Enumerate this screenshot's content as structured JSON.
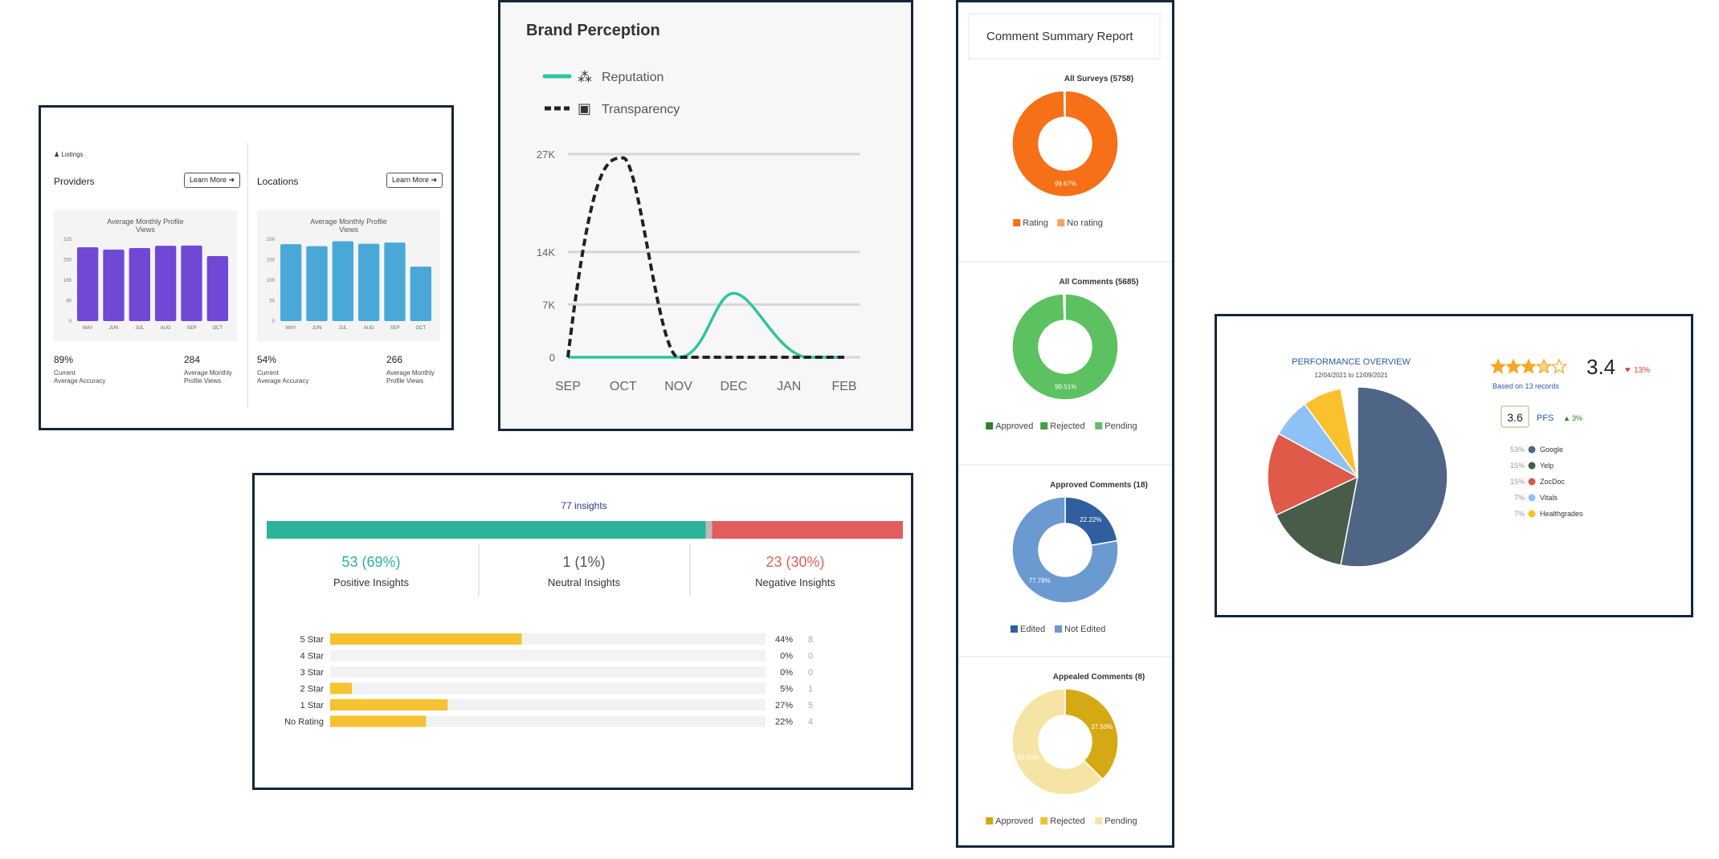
{
  "listings": {
    "header": "Listings",
    "panels": [
      {
        "title": "Providers",
        "button": "Learn More",
        "chart_title": "Average Monthly Profile Views",
        "stat1": {
          "value": "89%",
          "label1": "Current",
          "label2": "Average Accuracy"
        },
        "stat2": {
          "value": "284",
          "label1": "Average Monthly",
          "label2": "Profile Views"
        },
        "color": "#7048d6"
      },
      {
        "title": "Locations",
        "button": "Learn More",
        "chart_title": "Average Monthly Profile Views",
        "stat1": {
          "value": "54%",
          "label1": "Current",
          "label2": "Average Accuracy"
        },
        "stat2": {
          "value": "266",
          "label1": "Average Monthly",
          "label2": "Profile Views"
        },
        "color": "#4aa8d8"
      }
    ]
  },
  "brand": {
    "title": "Brand Perception",
    "legend": [
      "Reputation",
      "Transparency"
    ],
    "colors": [
      "#2ec4a0",
      "#222222"
    ]
  },
  "comments": {
    "title": "Comment Summary Report",
    "donuts": [
      {
        "title": "All Surveys (5758)",
        "slices": [
          99.67,
          0.33
        ],
        "colors": [
          "#f57016",
          "#f7a268"
        ],
        "labels": [
          "99.67%",
          ""
        ],
        "legend": [
          "Rating",
          "No rating"
        ],
        "legend_colors": [
          "#f57016",
          "#f7a268"
        ]
      },
      {
        "title": "All Comments (5685)",
        "slices": [
          99.51,
          0.1,
          0.39
        ],
        "colors": [
          "#5cc160",
          "#3a9a3e",
          "#9ed99f"
        ],
        "labels": [
          "99.51%",
          "",
          ""
        ],
        "legend": [
          "Approved",
          "Rejected",
          "Pending"
        ],
        "legend_colors": [
          "#2d7d32",
          "#43a047",
          "#66bb6a"
        ]
      },
      {
        "title": "Approved Comments (18)",
        "slices": [
          22.22,
          77.78
        ],
        "colors": [
          "#2f5f9e",
          "#6a9ad0"
        ],
        "labels": [
          "22.22%",
          "77.78%"
        ],
        "legend": [
          "Edited",
          "Not Edited"
        ],
        "legend_colors": [
          "#2f5f9e",
          "#6a9ad0"
        ]
      },
      {
        "title": "Appealed Comments (8)",
        "slices": [
          37.5,
          62.5
        ],
        "colors": [
          "#d4a914",
          "#f5e4a3"
        ],
        "labels": [
          "37.50%",
          "62.50%"
        ],
        "legend": [
          "Approved",
          "Rejected",
          "Pending"
        ],
        "legend_colors": [
          "#d4a914",
          "#f0c030",
          "#f5e4a3"
        ]
      }
    ]
  },
  "insights": {
    "total": "77 insights",
    "positive": {
      "value": "53 (69%)",
      "label": "Positive Insights"
    },
    "neutral": {
      "value": "1 (1%)",
      "label": "Neutral Insights"
    },
    "negative": {
      "value": "23 (30%)",
      "label": "Negative Insights"
    },
    "split": [
      69,
      1,
      30
    ],
    "colors": [
      "#2bb39c",
      "#bbbbbb",
      "#e25e5e"
    ],
    "star_color": "#f6c231"
  },
  "performance": {
    "title": "PERFORMANCE OVERVIEW",
    "dates": "12/04/2021 to 12/09/2021",
    "rating": "3.4",
    "rating_stars": 3.4,
    "rating_change": "13%",
    "based_on": "Based on 13 records",
    "pfs_value": "3.6",
    "pfs_label": "PFS",
    "pfs_change": "3%",
    "legend": [
      {
        "pct": "53%",
        "name": "Google",
        "color": "#4e6586"
      },
      {
        "pct": "15%",
        "name": "Yelp",
        "color": "#485c49"
      },
      {
        "pct": "15%",
        "name": "ZocDoc",
        "color": "#e05a4a"
      },
      {
        "pct": "7%",
        "name": "Vitals",
        "color": "#8ec1f5"
      },
      {
        "pct": "7%",
        "name": "Healthgrades",
        "color": "#fbc02d"
      }
    ]
  },
  "chart_data": [
    {
      "type": "bar",
      "title": "Average Monthly Profile Views",
      "categories": [
        "MAY",
        "JUN",
        "JUL",
        "AUG",
        "SEP",
        "OCT"
      ],
      "values": [
        293,
        284,
        290,
        299,
        300,
        258
      ],
      "yticks": [
        "325",
        "250",
        "165",
        "80",
        "0"
      ],
      "ylim": [
        0,
        325
      ]
    },
    {
      "type": "bar",
      "title": "Average Monthly Profile Views",
      "categories": [
        "MAY",
        "JUN",
        "JUL",
        "AUG",
        "SEP",
        "OCT"
      ],
      "values": [
        188,
        183,
        195,
        189,
        192,
        133
      ],
      "yticks": [
        "200",
        "150",
        "100",
        "50",
        "0"
      ],
      "ylim": [
        0,
        200
      ]
    },
    {
      "type": "line",
      "title": "Brand Perception",
      "x": [
        "SEP",
        "OCT",
        "NOV",
        "DEC",
        "JAN",
        "FEB"
      ],
      "series": [
        {
          "name": "Reputation",
          "values": [
            0,
            0,
            0,
            8500,
            0,
            0
          ]
        },
        {
          "name": "Transparency",
          "values": [
            0,
            26500,
            0,
            0,
            0,
            0
          ]
        }
      ],
      "yticks": [
        "27K",
        "14K",
        "7K",
        "0"
      ],
      "ylim": [
        0,
        27000
      ]
    },
    {
      "type": "pie",
      "title": "All Surveys (5758)",
      "categories": [
        "Rating",
        "No rating"
      ],
      "values": [
        99.67,
        0.33
      ]
    },
    {
      "type": "pie",
      "title": "All Comments (5685)",
      "categories": [
        "Approved",
        "Rejected",
        "Pending"
      ],
      "values": [
        99.51,
        0.1,
        0.39
      ]
    },
    {
      "type": "pie",
      "title": "Approved Comments (18)",
      "categories": [
        "Edited",
        "Not Edited"
      ],
      "values": [
        22.22,
        77.78
      ]
    },
    {
      "type": "pie",
      "title": "Appealed Comments (8)",
      "categories": [
        "Approved",
        "Rejected",
        "Pending"
      ],
      "values": [
        37.5,
        0,
        62.5
      ]
    },
    {
      "type": "bar",
      "title": "",
      "categories": [
        "5 Star",
        "4 Star",
        "3 Star",
        "2 Star",
        "1 Star",
        "No Rating"
      ],
      "values": [
        44,
        0,
        0,
        5,
        27,
        22
      ],
      "pct_labels": [
        "44%",
        "0%",
        "0%",
        "5%",
        "27%",
        "22%"
      ],
      "counts": [
        "8",
        "0",
        "0",
        "1",
        "5",
        "4"
      ],
      "xlim": [
        0,
        100
      ]
    },
    {
      "type": "pie",
      "title": "PERFORMANCE OVERVIEW",
      "categories": [
        "Google",
        "Yelp",
        "ZocDoc",
        "Vitals",
        "Healthgrades"
      ],
      "values": [
        53,
        15,
        15,
        7,
        7
      ]
    }
  ]
}
